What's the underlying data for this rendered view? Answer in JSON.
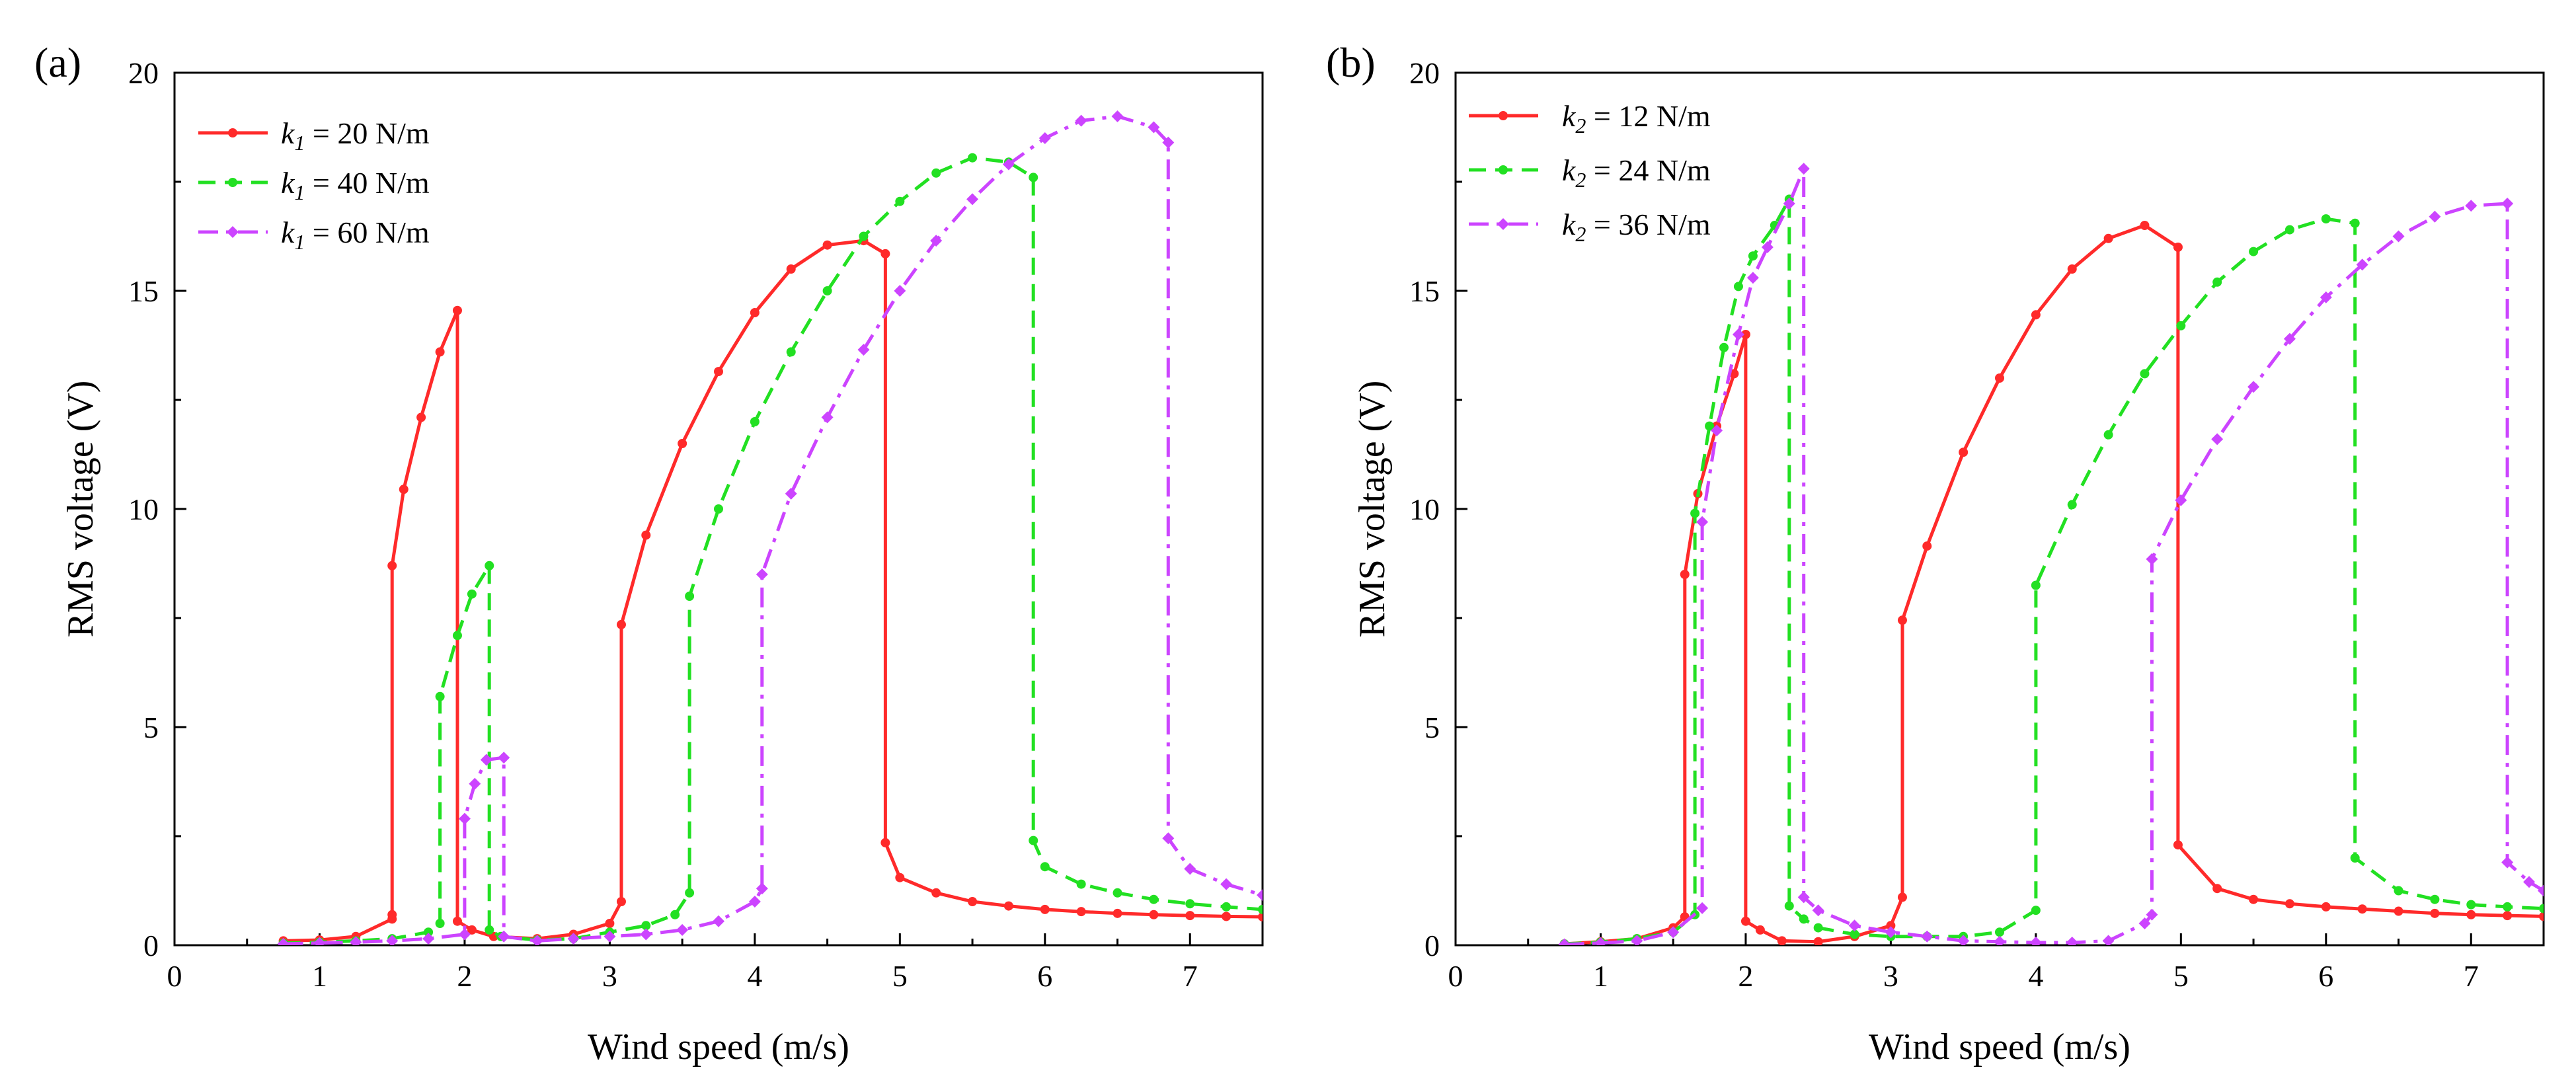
{
  "chart_data": [
    {
      "type": "line",
      "panel_label": "(a)",
      "xlabel": "Wind speed (m/s)",
      "ylabel": "RMS voltage (V)",
      "xlim": [
        0,
        7.5
      ],
      "ylim": [
        0,
        20
      ],
      "xticks": [
        0,
        1,
        2,
        3,
        4,
        5,
        6,
        7
      ],
      "yticks": [
        0,
        5,
        10,
        15,
        20
      ],
      "grid": false,
      "legend_position": "top-left",
      "series": [
        {
          "name": "k1 = 20 N/m",
          "symbol": "k",
          "subscript": "1",
          "value_text": " = 20 N/m",
          "color": "#ff2a2a",
          "dash": "solid",
          "marker": "circle",
          "points": [
            [
              0.75,
              0.1
            ],
            [
              1.0,
              0.12
            ],
            [
              1.25,
              0.2
            ],
            [
              1.5,
              0.6
            ],
            [
              1.5,
              0.7
            ],
            [
              1.5,
              8.7
            ],
            [
              1.58,
              10.45
            ],
            [
              1.7,
              12.1
            ],
            [
              1.83,
              13.6
            ],
            [
              1.95,
              14.55
            ],
            [
              1.95,
              0.55
            ],
            [
              2.05,
              0.35
            ],
            [
              2.2,
              0.2
            ],
            [
              2.5,
              0.15
            ],
            [
              2.75,
              0.25
            ],
            [
              3.0,
              0.5
            ],
            [
              3.08,
              1.0
            ],
            [
              3.08,
              7.35
            ],
            [
              3.25,
              9.4
            ],
            [
              3.5,
              11.5
            ],
            [
              3.75,
              13.15
            ],
            [
              4.0,
              14.5
            ],
            [
              4.25,
              15.5
            ],
            [
              4.5,
              16.05
            ],
            [
              4.75,
              16.15
            ],
            [
              4.9,
              15.85
            ],
            [
              4.9,
              2.35
            ],
            [
              5.0,
              1.55
            ],
            [
              5.25,
              1.2
            ],
            [
              5.5,
              1.0
            ],
            [
              5.75,
              0.9
            ],
            [
              6.0,
              0.82
            ],
            [
              6.25,
              0.77
            ],
            [
              6.5,
              0.73
            ],
            [
              6.75,
              0.7
            ],
            [
              7.0,
              0.68
            ],
            [
              7.25,
              0.66
            ],
            [
              7.5,
              0.65
            ]
          ]
        },
        {
          "name": "k1 = 40 N/m",
          "symbol": "k",
          "subscript": "1",
          "value_text": " = 40 N/m",
          "color": "#22e022",
          "dash": "dash",
          "marker": "circle",
          "points": [
            [
              0.75,
              0.05
            ],
            [
              1.0,
              0.07
            ],
            [
              1.25,
              0.1
            ],
            [
              1.5,
              0.15
            ],
            [
              1.75,
              0.3
            ],
            [
              1.83,
              0.5
            ],
            [
              1.83,
              5.7
            ],
            [
              1.95,
              7.1
            ],
            [
              2.05,
              8.05
            ],
            [
              2.17,
              8.7
            ],
            [
              2.17,
              0.35
            ],
            [
              2.25,
              0.2
            ],
            [
              2.5,
              0.12
            ],
            [
              2.75,
              0.15
            ],
            [
              3.0,
              0.3
            ],
            [
              3.25,
              0.45
            ],
            [
              3.45,
              0.7
            ],
            [
              3.55,
              1.2
            ],
            [
              3.55,
              8.0
            ],
            [
              3.75,
              10.0
            ],
            [
              4.0,
              12.0
            ],
            [
              4.25,
              13.6
            ],
            [
              4.5,
              15.0
            ],
            [
              4.75,
              16.25
            ],
            [
              5.0,
              17.05
            ],
            [
              5.25,
              17.7
            ],
            [
              5.5,
              18.05
            ],
            [
              5.75,
              17.95
            ],
            [
              5.92,
              17.6
            ],
            [
              5.92,
              2.4
            ],
            [
              6.0,
              1.8
            ],
            [
              6.25,
              1.4
            ],
            [
              6.5,
              1.2
            ],
            [
              6.75,
              1.05
            ],
            [
              7.0,
              0.95
            ],
            [
              7.25,
              0.88
            ],
            [
              7.5,
              0.82
            ]
          ]
        },
        {
          "name": "k1 = 60 N/m",
          "symbol": "k",
          "subscript": "1",
          "value_text": " = 60 N/m",
          "color": "#cc44ff",
          "dash": "dashdot",
          "marker": "diamond",
          "points": [
            [
              0.75,
              0.03
            ],
            [
              1.0,
              0.05
            ],
            [
              1.25,
              0.07
            ],
            [
              1.5,
              0.1
            ],
            [
              1.75,
              0.15
            ],
            [
              2.0,
              0.25
            ],
            [
              2.0,
              2.9
            ],
            [
              2.07,
              3.7
            ],
            [
              2.15,
              4.25
            ],
            [
              2.27,
              4.3
            ],
            [
              2.27,
              0.2
            ],
            [
              2.5,
              0.1
            ],
            [
              2.75,
              0.15
            ],
            [
              3.0,
              0.2
            ],
            [
              3.25,
              0.25
            ],
            [
              3.5,
              0.35
            ],
            [
              3.75,
              0.55
            ],
            [
              4.0,
              1.0
            ],
            [
              4.05,
              1.3
            ],
            [
              4.05,
              8.5
            ],
            [
              4.25,
              10.35
            ],
            [
              4.5,
              12.1
            ],
            [
              4.75,
              13.65
            ],
            [
              5.0,
              15.0
            ],
            [
              5.25,
              16.15
            ],
            [
              5.5,
              17.1
            ],
            [
              5.75,
              17.9
            ],
            [
              6.0,
              18.5
            ],
            [
              6.25,
              18.9
            ],
            [
              6.5,
              19.0
            ],
            [
              6.75,
              18.75
            ],
            [
              6.85,
              18.4
            ],
            [
              6.85,
              2.45
            ],
            [
              7.0,
              1.75
            ],
            [
              7.25,
              1.4
            ],
            [
              7.5,
              1.15
            ]
          ]
        }
      ]
    },
    {
      "type": "line",
      "panel_label": "(b)",
      "xlabel": "Wind speed (m/s)",
      "ylabel": "RMS voltage (V)",
      "xlim": [
        0,
        7.5
      ],
      "ylim": [
        0,
        20
      ],
      "xticks": [
        0,
        1,
        2,
        3,
        4,
        5,
        6,
        7
      ],
      "yticks": [
        0,
        5,
        10,
        15,
        20
      ],
      "grid": false,
      "legend_position": "top-left",
      "series": [
        {
          "name": "k2 = 12 N/m",
          "symbol": "k",
          "subscript": "2",
          "value_text": " = 12 N/m",
          "color": "#ff2a2a",
          "dash": "solid",
          "marker": "circle",
          "points": [
            [
              0.75,
              0.03
            ],
            [
              1.0,
              0.08
            ],
            [
              1.25,
              0.15
            ],
            [
              1.5,
              0.4
            ],
            [
              1.58,
              0.65
            ],
            [
              1.58,
              8.5
            ],
            [
              1.67,
              10.35
            ],
            [
              1.8,
              11.9
            ],
            [
              1.92,
              13.1
            ],
            [
              2.0,
              14.0
            ],
            [
              2.0,
              0.55
            ],
            [
              2.1,
              0.35
            ],
            [
              2.25,
              0.1
            ],
            [
              2.5,
              0.08
            ],
            [
              2.75,
              0.2
            ],
            [
              3.0,
              0.45
            ],
            [
              3.08,
              1.1
            ],
            [
              3.08,
              7.45
            ],
            [
              3.25,
              9.15
            ],
            [
              3.5,
              11.3
            ],
            [
              3.75,
              13.0
            ],
            [
              4.0,
              14.45
            ],
            [
              4.25,
              15.5
            ],
            [
              4.5,
              16.2
            ],
            [
              4.75,
              16.5
            ],
            [
              4.98,
              16.0
            ],
            [
              4.98,
              2.3
            ],
            [
              5.25,
              1.3
            ],
            [
              5.5,
              1.05
            ],
            [
              5.75,
              0.95
            ],
            [
              6.0,
              0.88
            ],
            [
              6.25,
              0.83
            ],
            [
              6.5,
              0.78
            ],
            [
              6.75,
              0.73
            ],
            [
              7.0,
              0.7
            ],
            [
              7.25,
              0.68
            ],
            [
              7.5,
              0.66
            ]
          ]
        },
        {
          "name": "k2 = 24 N/m",
          "symbol": "k",
          "subscript": "2",
          "value_text": " = 24 N/m",
          "color": "#22e022",
          "dash": "dash",
          "marker": "circle",
          "points": [
            [
              0.75,
              0.03
            ],
            [
              1.0,
              0.07
            ],
            [
              1.25,
              0.15
            ],
            [
              1.5,
              0.3
            ],
            [
              1.65,
              0.7
            ],
            [
              1.65,
              9.9
            ],
            [
              1.75,
              11.9
            ],
            [
              1.85,
              13.7
            ],
            [
              1.95,
              15.1
            ],
            [
              2.05,
              15.8
            ],
            [
              2.2,
              16.5
            ],
            [
              2.3,
              17.1
            ],
            [
              2.3,
              0.9
            ],
            [
              2.4,
              0.6
            ],
            [
              2.5,
              0.4
            ],
            [
              2.75,
              0.25
            ],
            [
              3.0,
              0.2
            ],
            [
              3.25,
              0.2
            ],
            [
              3.5,
              0.2
            ],
            [
              3.75,
              0.3
            ],
            [
              4.0,
              0.8
            ],
            [
              4.0,
              8.25
            ],
            [
              4.25,
              10.1
            ],
            [
              4.5,
              11.7
            ],
            [
              4.75,
              13.1
            ],
            [
              5.0,
              14.2
            ],
            [
              5.25,
              15.2
            ],
            [
              5.5,
              15.9
            ],
            [
              5.75,
              16.4
            ],
            [
              6.0,
              16.65
            ],
            [
              6.2,
              16.55
            ],
            [
              6.2,
              2.0
            ],
            [
              6.5,
              1.25
            ],
            [
              6.75,
              1.05
            ],
            [
              7.0,
              0.93
            ],
            [
              7.25,
              0.88
            ],
            [
              7.5,
              0.84
            ]
          ]
        },
        {
          "name": "k2 = 36 N/m",
          "symbol": "k",
          "subscript": "2",
          "value_text": " = 36 N/m",
          "color": "#cc44ff",
          "dash": "dashdot",
          "marker": "diamond",
          "points": [
            [
              0.75,
              0.02
            ],
            [
              1.0,
              0.05
            ],
            [
              1.25,
              0.1
            ],
            [
              1.5,
              0.3
            ],
            [
              1.7,
              0.85
            ],
            [
              1.7,
              9.7
            ],
            [
              1.8,
              11.8
            ],
            [
              1.95,
              14.0
            ],
            [
              2.05,
              15.3
            ],
            [
              2.15,
              16.0
            ],
            [
              2.3,
              17.0
            ],
            [
              2.4,
              17.8
            ],
            [
              2.4,
              1.1
            ],
            [
              2.5,
              0.8
            ],
            [
              2.75,
              0.45
            ],
            [
              3.0,
              0.3
            ],
            [
              3.25,
              0.2
            ],
            [
              3.5,
              0.1
            ],
            [
              3.75,
              0.08
            ],
            [
              4.0,
              0.06
            ],
            [
              4.25,
              0.06
            ],
            [
              4.5,
              0.1
            ],
            [
              4.75,
              0.5
            ],
            [
              4.8,
              0.7
            ],
            [
              4.8,
              8.85
            ],
            [
              5.0,
              10.2
            ],
            [
              5.25,
              11.6
            ],
            [
              5.5,
              12.8
            ],
            [
              5.75,
              13.9
            ],
            [
              6.0,
              14.85
            ],
            [
              6.25,
              15.6
            ],
            [
              6.5,
              16.25
            ],
            [
              6.75,
              16.7
            ],
            [
              7.0,
              16.95
            ],
            [
              7.25,
              17.0
            ],
            [
              7.25,
              1.9
            ],
            [
              7.4,
              1.45
            ],
            [
              7.5,
              1.25
            ]
          ]
        }
      ]
    }
  ]
}
